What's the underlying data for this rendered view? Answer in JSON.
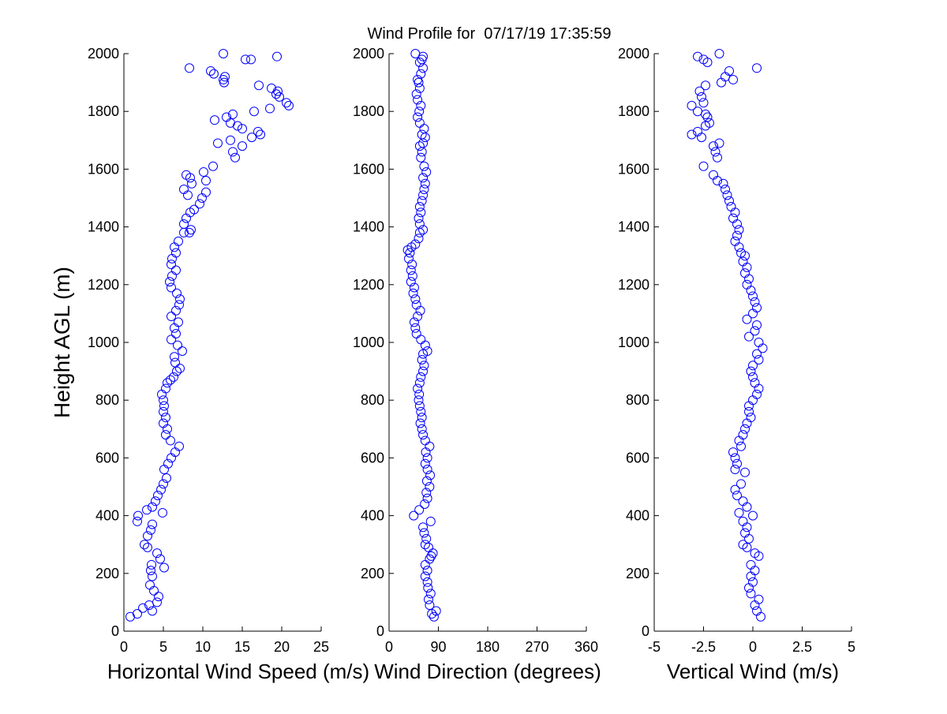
{
  "figure_title": "Wind Profile for  07/17/19 17:35:59",
  "colors": {
    "markers": "#0000ff",
    "axes": "#000000",
    "background": "#ffffff"
  },
  "chart_data": [
    {
      "type": "scatter",
      "marker": "open-circle",
      "title": "",
      "xlabel": "Horizontal Wind Speed (m/s)",
      "ylabel": "Height AGL (m)",
      "xlim": [
        0,
        25
      ],
      "ylim": [
        0,
        2000
      ],
      "xticks": [
        0,
        5,
        10,
        15,
        20,
        25
      ],
      "xtick_labels": [
        "0",
        "5",
        "10",
        "15",
        "20",
        "25"
      ],
      "yticks": [
        0,
        200,
        400,
        600,
        800,
        1000,
        1200,
        1400,
        1600,
        1800,
        2000
      ],
      "ytick_labels": [
        "0",
        "200",
        "400",
        "600",
        "800",
        "1000",
        "1200",
        "1400",
        "1600",
        "1800",
        "2000"
      ],
      "grid": false,
      "points": [
        [
          0.8,
          50
        ],
        [
          1.7,
          60
        ],
        [
          2.4,
          80
        ],
        [
          3.2,
          90
        ],
        [
          4.2,
          100
        ],
        [
          3.6,
          70
        ],
        [
          4.4,
          120
        ],
        [
          3.8,
          140
        ],
        [
          3.3,
          160
        ],
        [
          3.6,
          190
        ],
        [
          3.4,
          210
        ],
        [
          3.5,
          230
        ],
        [
          5.1,
          220
        ],
        [
          4.6,
          250
        ],
        [
          4.2,
          270
        ],
        [
          3.0,
          290
        ],
        [
          2.6,
          300
        ],
        [
          3.0,
          330
        ],
        [
          3.4,
          350
        ],
        [
          3.6,
          370
        ],
        [
          1.7,
          380
        ],
        [
          1.8,
          400
        ],
        [
          4.9,
          410
        ],
        [
          2.9,
          420
        ],
        [
          3.6,
          430
        ],
        [
          4.0,
          450
        ],
        [
          4.3,
          470
        ],
        [
          4.7,
          490
        ],
        [
          5.0,
          510
        ],
        [
          5.4,
          530
        ],
        [
          5.1,
          560
        ],
        [
          5.6,
          580
        ],
        [
          6.0,
          600
        ],
        [
          6.5,
          620
        ],
        [
          7.0,
          640
        ],
        [
          5.9,
          660
        ],
        [
          5.3,
          680
        ],
        [
          5.5,
          700
        ],
        [
          5.0,
          720
        ],
        [
          5.3,
          740
        ],
        [
          5.0,
          760
        ],
        [
          5.1,
          780
        ],
        [
          5.0,
          800
        ],
        [
          4.8,
          820
        ],
        [
          5.3,
          840
        ],
        [
          5.5,
          860
        ],
        [
          5.9,
          870
        ],
        [
          6.3,
          880
        ],
        [
          6.7,
          900
        ],
        [
          7.1,
          910
        ],
        [
          6.5,
          930
        ],
        [
          6.4,
          950
        ],
        [
          7.4,
          970
        ],
        [
          6.8,
          990
        ],
        [
          6.0,
          1010
        ],
        [
          6.6,
          1030
        ],
        [
          6.4,
          1050
        ],
        [
          6.9,
          1070
        ],
        [
          6.0,
          1090
        ],
        [
          6.6,
          1110
        ],
        [
          7.0,
          1130
        ],
        [
          7.1,
          1150
        ],
        [
          6.7,
          1170
        ],
        [
          6.0,
          1190
        ],
        [
          5.8,
          1210
        ],
        [
          6.1,
          1230
        ],
        [
          6.6,
          1250
        ],
        [
          6.0,
          1270
        ],
        [
          6.1,
          1290
        ],
        [
          6.6,
          1310
        ],
        [
          6.4,
          1330
        ],
        [
          6.9,
          1350
        ],
        [
          7.6,
          1380
        ],
        [
          8.3,
          1380
        ],
        [
          8.5,
          1390
        ],
        [
          7.6,
          1410
        ],
        [
          7.9,
          1430
        ],
        [
          8.4,
          1450
        ],
        [
          8.9,
          1460
        ],
        [
          9.6,
          1480
        ],
        [
          9.9,
          1500
        ],
        [
          8.1,
          1510
        ],
        [
          10.4,
          1520
        ],
        [
          7.6,
          1530
        ],
        [
          8.6,
          1550
        ],
        [
          10.4,
          1560
        ],
        [
          8.4,
          1570
        ],
        [
          7.9,
          1580
        ],
        [
          10.1,
          1590
        ],
        [
          11.3,
          1610
        ],
        [
          14.1,
          1640
        ],
        [
          15.0,
          1680
        ],
        [
          11.9,
          1690
        ],
        [
          13.5,
          1700
        ],
        [
          13.8,
          1660
        ],
        [
          16.2,
          1710
        ],
        [
          17.3,
          1720
        ],
        [
          17.0,
          1730
        ],
        [
          15.0,
          1740
        ],
        [
          14.4,
          1750
        ],
        [
          11.5,
          1770
        ],
        [
          13.5,
          1760
        ],
        [
          13.0,
          1780
        ],
        [
          13.8,
          1790
        ],
        [
          16.5,
          1800
        ],
        [
          18.5,
          1810
        ],
        [
          20.9,
          1820
        ],
        [
          20.6,
          1830
        ],
        [
          19.7,
          1850
        ],
        [
          19.3,
          1860
        ],
        [
          19.5,
          1870
        ],
        [
          18.7,
          1880
        ],
        [
          17.1,
          1890
        ],
        [
          12.7,
          1900
        ],
        [
          12.6,
          1910
        ],
        [
          12.8,
          1920
        ],
        [
          11.4,
          1930
        ],
        [
          11.0,
          1940
        ],
        [
          8.3,
          1950
        ],
        [
          16.1,
          1980
        ],
        [
          15.4,
          1980
        ],
        [
          19.4,
          1990
        ],
        [
          12.6,
          2000
        ]
      ]
    },
    {
      "type": "scatter",
      "marker": "open-circle",
      "title": "",
      "xlabel": "Wind Direction (degrees)",
      "ylabel": "",
      "xlim": [
        0,
        360
      ],
      "ylim": [
        0,
        2000
      ],
      "xticks": [
        0,
        90,
        180,
        270,
        360
      ],
      "xtick_labels": [
        "0",
        "90",
        "180",
        "270",
        "360"
      ],
      "yticks": [
        0,
        200,
        400,
        600,
        800,
        1000,
        1200,
        1400,
        1600,
        1800,
        2000
      ],
      "ytick_labels": [
        "0",
        "200",
        "400",
        "600",
        "800",
        "1000",
        "1200",
        "1400",
        "1600",
        "1800",
        "2000"
      ],
      "grid": false,
      "points": [
        [
          82,
          50
        ],
        [
          78,
          60
        ],
        [
          86,
          70
        ],
        [
          74,
          90
        ],
        [
          72,
          110
        ],
        [
          76,
          130
        ],
        [
          71,
          150
        ],
        [
          70,
          170
        ],
        [
          66,
          190
        ],
        [
          70,
          210
        ],
        [
          66,
          230
        ],
        [
          74,
          250
        ],
        [
          77,
          260
        ],
        [
          80,
          270
        ],
        [
          72,
          290
        ],
        [
          66,
          300
        ],
        [
          68,
          320
        ],
        [
          64,
          340
        ],
        [
          62,
          360
        ],
        [
          76,
          380
        ],
        [
          45,
          400
        ],
        [
          55,
          420
        ],
        [
          65,
          440
        ],
        [
          70,
          460
        ],
        [
          68,
          480
        ],
        [
          74,
          500
        ],
        [
          69,
          520
        ],
        [
          75,
          540
        ],
        [
          70,
          560
        ],
        [
          66,
          580
        ],
        [
          70,
          600
        ],
        [
          67,
          620
        ],
        [
          74,
          640
        ],
        [
          66,
          660
        ],
        [
          62,
          680
        ],
        [
          60,
          700
        ],
        [
          57,
          720
        ],
        [
          60,
          740
        ],
        [
          58,
          760
        ],
        [
          56,
          780
        ],
        [
          54,
          800
        ],
        [
          55,
          820
        ],
        [
          52,
          840
        ],
        [
          56,
          860
        ],
        [
          58,
          880
        ],
        [
          62,
          900
        ],
        [
          64,
          920
        ],
        [
          60,
          940
        ],
        [
          62,
          960
        ],
        [
          70,
          970
        ],
        [
          66,
          990
        ],
        [
          58,
          1010
        ],
        [
          50,
          1030
        ],
        [
          48,
          1050
        ],
        [
          46,
          1070
        ],
        [
          52,
          1090
        ],
        [
          57,
          1110
        ],
        [
          50,
          1130
        ],
        [
          48,
          1150
        ],
        [
          44,
          1170
        ],
        [
          46,
          1190
        ],
        [
          40,
          1210
        ],
        [
          43,
          1230
        ],
        [
          40,
          1250
        ],
        [
          42,
          1270
        ],
        [
          36,
          1290
        ],
        [
          38,
          1310
        ],
        [
          34,
          1320
        ],
        [
          41,
          1330
        ],
        [
          48,
          1340
        ],
        [
          54,
          1360
        ],
        [
          56,
          1380
        ],
        [
          62,
          1390
        ],
        [
          56,
          1410
        ],
        [
          54,
          1430
        ],
        [
          58,
          1450
        ],
        [
          56,
          1470
        ],
        [
          60,
          1490
        ],
        [
          62,
          1510
        ],
        [
          64,
          1530
        ],
        [
          66,
          1550
        ],
        [
          62,
          1570
        ],
        [
          68,
          1590
        ],
        [
          64,
          1610
        ],
        [
          58,
          1640
        ],
        [
          60,
          1660
        ],
        [
          56,
          1680
        ],
        [
          62,
          1690
        ],
        [
          66,
          1710
        ],
        [
          60,
          1720
        ],
        [
          64,
          1740
        ],
        [
          56,
          1760
        ],
        [
          52,
          1780
        ],
        [
          55,
          1800
        ],
        [
          58,
          1820
        ],
        [
          52,
          1840
        ],
        [
          50,
          1860
        ],
        [
          56,
          1880
        ],
        [
          54,
          1900
        ],
        [
          52,
          1910
        ],
        [
          58,
          1930
        ],
        [
          62,
          1950
        ],
        [
          56,
          1970
        ],
        [
          60,
          1980
        ],
        [
          62,
          1990
        ],
        [
          48,
          2000
        ]
      ]
    },
    {
      "type": "scatter",
      "marker": "open-circle",
      "title": "",
      "xlabel": "Vertical Wind (m/s)",
      "ylabel": "",
      "xlim": [
        -5,
        5
      ],
      "ylim": [
        0,
        2000
      ],
      "xticks": [
        -5,
        -2.5,
        0,
        2.5,
        5
      ],
      "xtick_labels": [
        "-5",
        "-2.5",
        "0",
        "2.5",
        "5"
      ],
      "yticks": [
        0,
        200,
        400,
        600,
        800,
        1000,
        1200,
        1400,
        1600,
        1800,
        2000
      ],
      "ytick_labels": [
        "0",
        "200",
        "400",
        "600",
        "800",
        "1000",
        "1200",
        "1400",
        "1600",
        "1800",
        "2000"
      ],
      "grid": false,
      "points": [
        [
          0.4,
          50
        ],
        [
          0.2,
          70
        ],
        [
          0.1,
          90
        ],
        [
          0.3,
          110
        ],
        [
          -0.1,
          130
        ],
        [
          -0.2,
          150
        ],
        [
          0.0,
          170
        ],
        [
          -0.1,
          190
        ],
        [
          0.1,
          210
        ],
        [
          -0.1,
          230
        ],
        [
          0.3,
          260
        ],
        [
          0.1,
          270
        ],
        [
          -0.3,
          290
        ],
        [
          -0.5,
          300
        ],
        [
          -0.2,
          320
        ],
        [
          -0.4,
          340
        ],
        [
          -0.3,
          360
        ],
        [
          -0.5,
          380
        ],
        [
          0.0,
          400
        ],
        [
          -0.7,
          410
        ],
        [
          -0.3,
          430
        ],
        [
          -0.5,
          450
        ],
        [
          -0.8,
          470
        ],
        [
          -0.9,
          490
        ],
        [
          -0.6,
          510
        ],
        [
          -0.4,
          550
        ],
        [
          -0.9,
          560
        ],
        [
          -0.8,
          580
        ],
        [
          -0.9,
          600
        ],
        [
          -1.0,
          620
        ],
        [
          -0.6,
          640
        ],
        [
          -0.7,
          660
        ],
        [
          -0.5,
          680
        ],
        [
          -0.4,
          700
        ],
        [
          -0.3,
          720
        ],
        [
          -0.1,
          740
        ],
        [
          -0.2,
          760
        ],
        [
          -0.2,
          780
        ],
        [
          0.0,
          800
        ],
        [
          0.2,
          820
        ],
        [
          0.3,
          840
        ],
        [
          0.1,
          860
        ],
        [
          0.0,
          880
        ],
        [
          -0.1,
          900
        ],
        [
          0.0,
          920
        ],
        [
          0.3,
          940
        ],
        [
          0.2,
          960
        ],
        [
          0.5,
          980
        ],
        [
          0.3,
          1000
        ],
        [
          -0.2,
          1020
        ],
        [
          0.1,
          1040
        ],
        [
          0.2,
          1060
        ],
        [
          -0.3,
          1080
        ],
        [
          0.0,
          1100
        ],
        [
          0.2,
          1120
        ],
        [
          0.1,
          1140
        ],
        [
          0.0,
          1160
        ],
        [
          -0.1,
          1180
        ],
        [
          -0.3,
          1200
        ],
        [
          -0.2,
          1220
        ],
        [
          -0.4,
          1240
        ],
        [
          -0.3,
          1260
        ],
        [
          -0.5,
          1280
        ],
        [
          -0.4,
          1300
        ],
        [
          -0.6,
          1310
        ],
        [
          -0.7,
          1330
        ],
        [
          -0.9,
          1350
        ],
        [
          -0.8,
          1370
        ],
        [
          -0.7,
          1390
        ],
        [
          -0.8,
          1410
        ],
        [
          -1.0,
          1430
        ],
        [
          -0.9,
          1450
        ],
        [
          -1.1,
          1470
        ],
        [
          -1.2,
          1490
        ],
        [
          -1.3,
          1510
        ],
        [
          -1.4,
          1530
        ],
        [
          -1.5,
          1550
        ],
        [
          -1.8,
          1560
        ],
        [
          -2.0,
          1580
        ],
        [
          -2.5,
          1610
        ],
        [
          -1.8,
          1640
        ],
        [
          -1.9,
          1660
        ],
        [
          -2.0,
          1680
        ],
        [
          -1.7,
          1690
        ],
        [
          -2.6,
          1710
        ],
        [
          -3.1,
          1720
        ],
        [
          -2.8,
          1730
        ],
        [
          -2.4,
          1750
        ],
        [
          -2.2,
          1760
        ],
        [
          -2.3,
          1780
        ],
        [
          -2.4,
          1790
        ],
        [
          -2.8,
          1800
        ],
        [
          -3.1,
          1820
        ],
        [
          -2.5,
          1830
        ],
        [
          -2.6,
          1850
        ],
        [
          -2.7,
          1870
        ],
        [
          -2.4,
          1890
        ],
        [
          -1.6,
          1900
        ],
        [
          -1.0,
          1910
        ],
        [
          -1.4,
          1920
        ],
        [
          -1.2,
          1940
        ],
        [
          0.2,
          1950
        ],
        [
          -2.3,
          1970
        ],
        [
          -2.5,
          1980
        ],
        [
          -2.8,
          1990
        ],
        [
          -1.7,
          2000
        ]
      ]
    }
  ]
}
